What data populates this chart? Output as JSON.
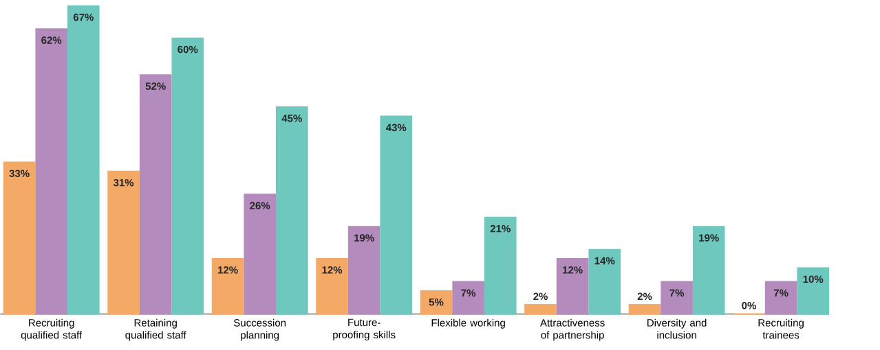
{
  "chart_data": {
    "type": "bar",
    "categories": [
      "Recruiting qualified staff",
      "Retaining qualified staff",
      "Succession planning",
      "Future-proofing skills",
      "Flexible working",
      "Attractiveness of partnership",
      "Diversity and inclusion",
      "Recruiting trainees"
    ],
    "series": [
      {
        "color": "#f4a966",
        "values": [
          33,
          31,
          12,
          12,
          5,
          2,
          2,
          0
        ],
        "value_labels": [
          "33%",
          "31%",
          "12%",
          "12%",
          "5%",
          "2%",
          "2%",
          "0%"
        ]
      },
      {
        "color": "#b48bbd",
        "values": [
          62,
          52,
          26,
          19,
          7,
          12,
          7,
          7
        ],
        "value_labels": [
          "62%",
          "52%",
          "26%",
          "19%",
          "7%",
          "12%",
          "7%",
          "7%"
        ]
      },
      {
        "color": "#6ec8be",
        "values": [
          67,
          60,
          45,
          43,
          21,
          14,
          19,
          10
        ],
        "value_labels": [
          "67%",
          "60%",
          "45%",
          "43%",
          "21%",
          "14%",
          "19%",
          "10%"
        ]
      }
    ]
  }
}
